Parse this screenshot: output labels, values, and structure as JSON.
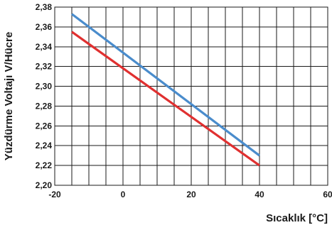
{
  "chart_data": {
    "type": "line",
    "title": "",
    "xlabel": "Sıcaklık [°C]",
    "ylabel": "Yüzdürme Voltajı V/Hücre",
    "xlim": [
      -20,
      60
    ],
    "ylim": [
      2.2,
      2.38
    ],
    "x_ticks": [
      -20,
      0,
      20,
      40,
      60
    ],
    "y_ticks": [
      2.2,
      2.22,
      2.24,
      2.26,
      2.28,
      2.3,
      2.32,
      2.34,
      2.36,
      2.38
    ],
    "x_tick_labels": [
      "-20",
      "0",
      "20",
      "40",
      "60"
    ],
    "y_tick_labels": [
      "2,20",
      "2,22",
      "2,24",
      "2,26",
      "2,28",
      "2,30",
      "2,32",
      "2,34",
      "2,36",
      "2,38"
    ],
    "x_minor_step": 5,
    "grid": true,
    "series": [
      {
        "color": "#4a8ccc",
        "x": [
          -15,
          40
        ],
        "y": [
          2.373,
          2.23
        ]
      },
      {
        "color": "#e03030",
        "x": [
          -15,
          40
        ],
        "y": [
          2.355,
          2.22
        ]
      }
    ]
  }
}
